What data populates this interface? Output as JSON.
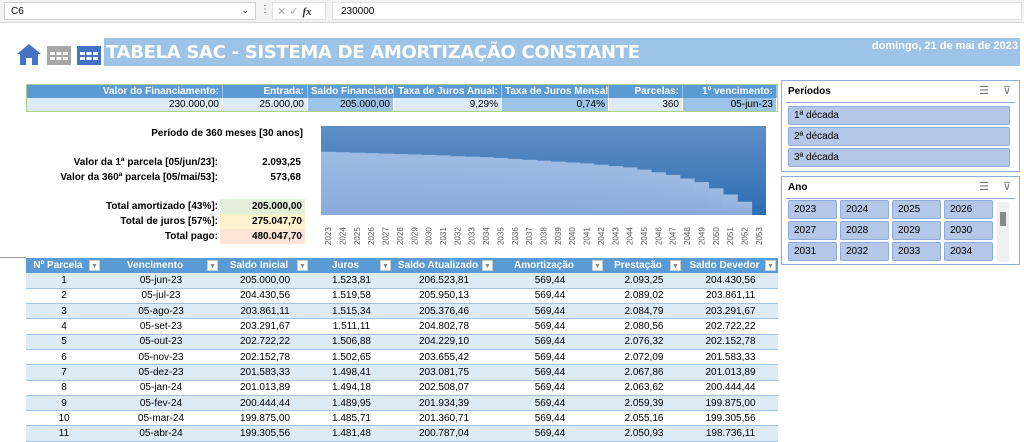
{
  "formula_bar": {
    "name_box": "C6",
    "formula": "230000"
  },
  "header": {
    "title": "TABELA SAC - SISTEMA DE AMORTIZAÇÃO CONSTANTE",
    "date": "domingo, 21 de mai de 2023",
    "icons": [
      "home-icon",
      "calendar-icon",
      "calendar-icon"
    ]
  },
  "colors": {
    "header_blue": "#5b9bd5",
    "light_blue": "#ddebf7",
    "banner": "#9dc3e6",
    "green": "#e2efda",
    "yellow": "#fff2cc",
    "orange": "#fce4d6"
  },
  "info": [
    {
      "label": "Valor do Financiamento:",
      "value": "230.000,00"
    },
    {
      "label": "Entrada:",
      "value": "25.000,00"
    },
    {
      "label": "Saldo Financiado:",
      "value": "205.000,00"
    },
    {
      "label": "Taxa de Juros Anual:",
      "value": "9,29%"
    },
    {
      "label": "Taxa de Juros Mensal:",
      "value": "0,74%"
    },
    {
      "label": "Parcelas:",
      "value": "360"
    },
    {
      "label": "1º vencimento:",
      "value": "05-jun-23"
    }
  ],
  "summary": {
    "period": "Período de 360 meses [30 anos]",
    "first_label": "Valor da 1ª parcela [05/jun/23]:",
    "first_value": "2.093,25",
    "last_label": "Valor da 360ª parcela [05/mai/53]:",
    "last_value": "573,68",
    "amort_label": "Total amortizado [43%]:",
    "amort_value": "205.000,00",
    "juros_label": "Total de juros [57%]:",
    "juros_value": "275.047,70",
    "pago_label": "Total pago:",
    "pago_value": "480.047,70"
  },
  "chart_data": {
    "type": "area",
    "categories": [
      "2023",
      "2024",
      "2025",
      "2026",
      "2027",
      "2028",
      "2029",
      "2030",
      "2031",
      "2032",
      "2033",
      "2034",
      "2035",
      "2036",
      "2037",
      "2038",
      "2039",
      "2040",
      "2041",
      "2042",
      "2043",
      "2044",
      "2045",
      "2046",
      "2047",
      "2048",
      "2049",
      "2050",
      "2051",
      "2052",
      "2053"
    ],
    "series": [
      {
        "values": [
          71,
          70.5,
          70,
          69.5,
          69,
          68.5,
          68,
          67.5,
          67,
          66,
          65.5,
          65,
          64,
          63,
          62,
          61,
          60,
          59,
          58,
          56.5,
          55,
          53.5,
          51,
          48,
          45,
          41,
          37,
          30,
          23,
          15,
          0
        ]
      }
    ],
    "ylim": [
      0,
      100
    ],
    "grid": false
  },
  "slicers": {
    "periodos": {
      "title": "Períodos",
      "items": [
        "1ª década",
        "2ª década",
        "3ª década"
      ]
    },
    "ano": {
      "title": "Ano",
      "items": [
        "2023",
        "2024",
        "2025",
        "2026",
        "2027",
        "2028",
        "2029",
        "2030",
        "2031",
        "2032",
        "2033",
        "2034"
      ]
    }
  },
  "table": {
    "headers": [
      "Nº Parcela",
      "Vencimento",
      "Saldo Inicial",
      "Juros",
      "Saldo Atualizado",
      "Amortização",
      "Prestação",
      "Saldo Devedor"
    ],
    "rows": [
      [
        "1",
        "05-jun-23",
        "205.000,00",
        "1.523,81",
        "206.523,81",
        "569,44",
        "2.093,25",
        "204.430,56"
      ],
      [
        "2",
        "05-jul-23",
        "204.430,56",
        "1.519,58",
        "205.950,13",
        "569,44",
        "2.089,02",
        "203.861,11"
      ],
      [
        "3",
        "05-ago-23",
        "203.861,11",
        "1.515,34",
        "205.376,46",
        "569,44",
        "2.084,79",
        "203.291,67"
      ],
      [
        "4",
        "05-set-23",
        "203.291,67",
        "1.511,11",
        "204.802,78",
        "569,44",
        "2.080,56",
        "202.722,22"
      ],
      [
        "5",
        "05-out-23",
        "202.722,22",
        "1.506,88",
        "204.229,10",
        "569,44",
        "2.076,32",
        "202.152,78"
      ],
      [
        "6",
        "05-nov-23",
        "202.152,78",
        "1.502,65",
        "203.655,42",
        "569,44",
        "2.072,09",
        "201.583,33"
      ],
      [
        "7",
        "05-dez-23",
        "201.583,33",
        "1.498,41",
        "203.081,75",
        "569,44",
        "2.067,86",
        "201.013,89"
      ],
      [
        "8",
        "05-jan-24",
        "201.013,89",
        "1.494,18",
        "202.508,07",
        "569,44",
        "2.063,62",
        "200.444,44"
      ],
      [
        "9",
        "05-fev-24",
        "200.444,44",
        "1.489,95",
        "201.934,39",
        "569,44",
        "2.059,39",
        "199.875,00"
      ],
      [
        "10",
        "05-mar-24",
        "199.875,00",
        "1.485,71",
        "201.360,71",
        "569,44",
        "2.055,16",
        "199.305,56"
      ],
      [
        "11",
        "05-abr-24",
        "199.305,56",
        "1.481,48",
        "200.787,04",
        "569,44",
        "2.050,93",
        "198.736,11"
      ]
    ]
  }
}
